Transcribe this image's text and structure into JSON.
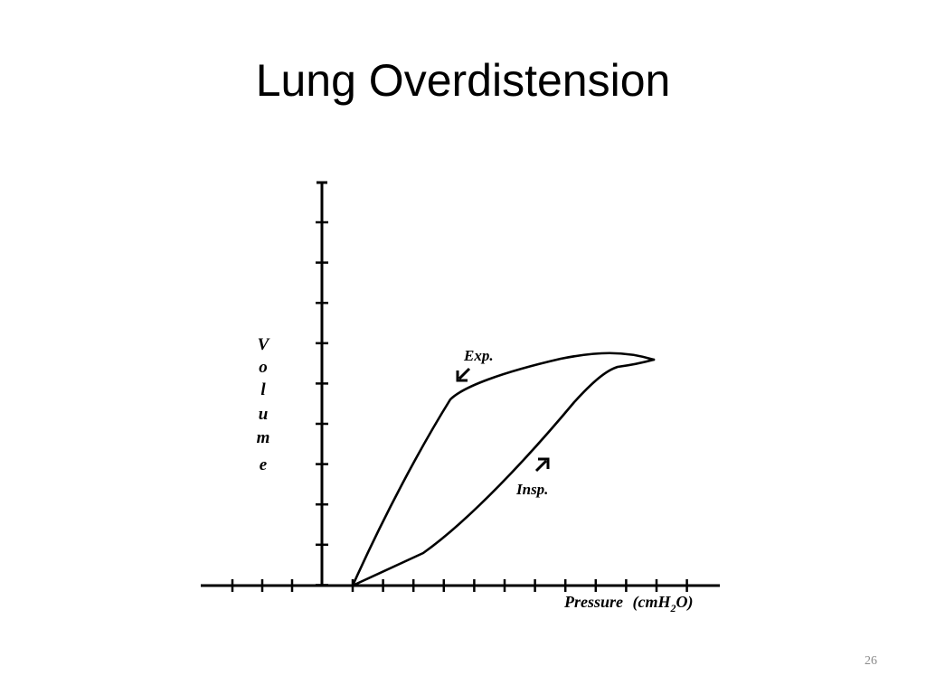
{
  "slide": {
    "title": "Lung Overdistension",
    "slide_number": "26"
  },
  "diagram": {
    "y_axis_label_letters": [
      "V",
      "o",
      "l",
      "u",
      "m",
      "e"
    ],
    "x_axis_label": {
      "main": "Pressure",
      "unit_prefix": "(cmH",
      "unit_subscript": "2",
      "unit_suffix": "O)"
    },
    "annotations": {
      "expiration": "Exp.",
      "inspiration": "Insp."
    },
    "x_tick_count": 12,
    "y_tick_count": 10
  }
}
